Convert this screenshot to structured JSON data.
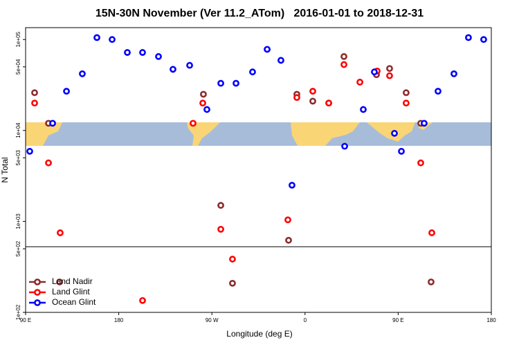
{
  "chart_data": {
    "type": "scatter",
    "title": "15N-30N November (Ver 11.2_ATom)   2016-01-01 to 2018-12-31",
    "x_label": "Longitude (deg E)",
    "y_label": "N Total",
    "xlim": [
      90,
      540
    ],
    "ylim": [
      100,
      135000
    ],
    "log_y": true,
    "legend": "bottom-left",
    "xticks": [
      {
        "value": 90,
        "label": "90 E"
      },
      {
        "value": 180,
        "label": "180"
      },
      {
        "value": 270,
        "label": "90 W"
      },
      {
        "value": 360,
        "label": "0"
      },
      {
        "value": 450,
        "label": "90 E"
      },
      {
        "value": 540,
        "label": "180"
      }
    ],
    "yticks": [
      {
        "value": 100000,
        "label": "1e+05"
      },
      {
        "value": 50000,
        "label": "5e+04"
      },
      {
        "value": 10000,
        "label": "1e+04"
      },
      {
        "value": 5000,
        "label": "5e+03"
      },
      {
        "value": 1000,
        "label": "1e+03"
      },
      {
        "value": 500,
        "label": "5e+02"
      },
      {
        "value": 100,
        "label": "1e+02"
      }
    ],
    "series": [
      {
        "name": "Land Nadir",
        "color": "#8b2b2b",
        "x": [
          98.7,
          112.1,
          261.8,
          278.6,
          344.1,
          352.1,
          367.5,
          382.9,
          397.6,
          429.0,
          441.7,
          457.7,
          471.8,
          289.9,
          122.8,
          481.8
        ],
        "values": [
          26000,
          12000,
          25000,
          1500,
          620,
          25000,
          21000,
          20000,
          65000,
          41000,
          48000,
          26000,
          12000,
          209,
          216,
          216
        ]
      },
      {
        "name": "Land Glint",
        "color": "#ff0000",
        "x": [
          98.7,
          112.1,
          123.4,
          251.8,
          261.2,
          278.6,
          343.4,
          352.1,
          367.5,
          382.9,
          397.6,
          413.0,
          429.7,
          441.7,
          457.7,
          471.8,
          482.5,
          289.9,
          203.0
        ],
        "values": [
          20000,
          4400,
          750,
          12000,
          20000,
          820,
          1040,
          23000,
          27000,
          20000,
          53000,
          34000,
          45000,
          40000,
          20000,
          4400,
          750,
          385,
          135
        ]
      },
      {
        "name": "Ocean Glint",
        "color": "#0000ff",
        "x": [
          94.0,
          116.1,
          129.5,
          144.8,
          158.9,
          173.6,
          188.3,
          203.0,
          218.4,
          232.4,
          248.5,
          265.2,
          278.6,
          293.3,
          309.3,
          323.4,
          336.7,
          347.4,
          398.3,
          416.3,
          427.0,
          446.4,
          453.1,
          475.1,
          488.5,
          503.9,
          517.9,
          532.6
        ],
        "values": [
          5900,
          12000,
          27000,
          42000,
          105000,
          100000,
          72000,
          72000,
          65000,
          47000,
          52000,
          17000,
          33000,
          33000,
          44000,
          78000,
          59000,
          2500,
          6700,
          17000,
          44000,
          9300,
          5900,
          12000,
          27000,
          42000,
          105000,
          100000
        ]
      }
    ]
  }
}
